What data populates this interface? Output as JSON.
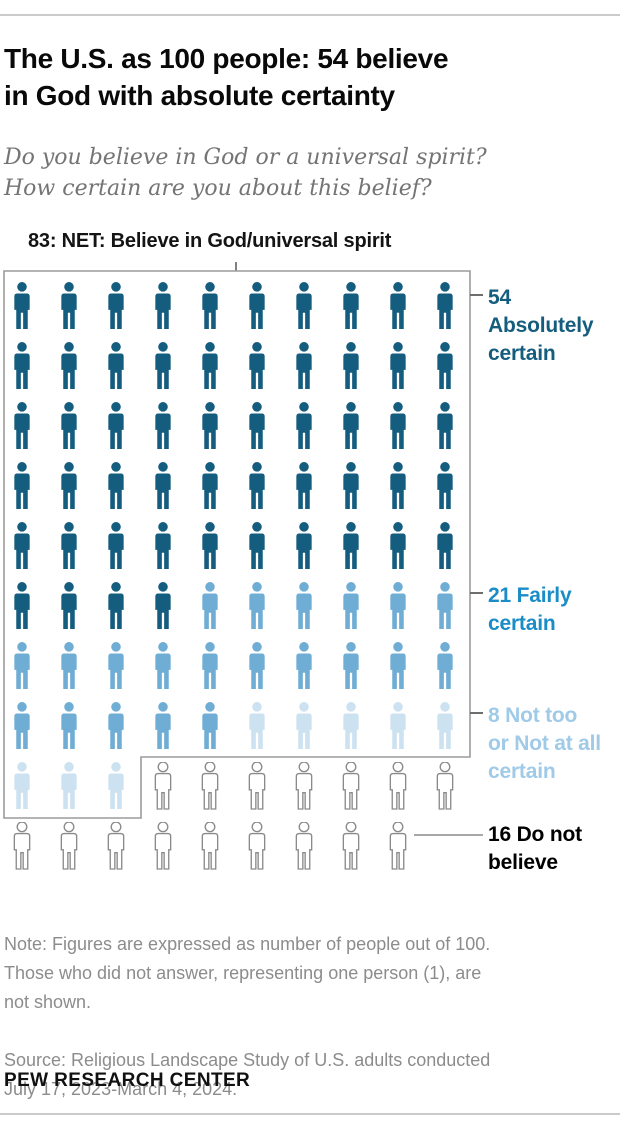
{
  "header": {
    "title": "The U.S. as 100 people: 54 believe\nin God with absolute certainty",
    "subtitle": "Do you believe in God or a universal spirit?\nHow certain are you about this belief?"
  },
  "chart_data": {
    "type": "pictogram",
    "description": "Unit chart of 100 people, 10 per row; each person icon represents 1 person out of 100; 99 icons shown",
    "grid": {
      "columns": 10,
      "icons_shown": 99
    },
    "net_label": "83: NET: Believe in God/universal spirit",
    "net_value": 83,
    "categories": [
      {
        "key": "absolutely-certain",
        "name": "Absolutely certain",
        "value": 54,
        "label": "54\nAbsolutely\ncertain",
        "icon_color": "#155d7e",
        "label_color": "#155d7e"
      },
      {
        "key": "fairly-certain",
        "name": "Fairly certain",
        "value": 21,
        "label": "21 Fairly\ncertain",
        "icon_color": "#6fadd5",
        "label_color": "#1a8cc7"
      },
      {
        "key": "not-too-certain",
        "name": "Not too or Not at all certain",
        "value": 8,
        "label": "8 Not too\nor Not at all\ncertain",
        "icon_color": "#cce2f1",
        "label_color": "#9fcae8"
      },
      {
        "key": "do-not-believe",
        "name": "Do not believe",
        "value": 16,
        "label": "16 Do not\nbelieve",
        "icon_color": "#ffffff",
        "icon_stroke": "#8a8a8a",
        "label_color": "#000000"
      }
    ],
    "not_shown": {
      "name": "Did not answer",
      "value": 1
    }
  },
  "footer": {
    "note": "Note: Figures are expressed as number of people out of 100.\nThose who did not answer, representing one person (1), are\nnot shown.",
    "source": "Source: Religious Landscape Study of U.S. adults conducted\nJuly 17, 2023-March 4, 2024.",
    "brand": "PEW RESEARCH CENTER"
  }
}
